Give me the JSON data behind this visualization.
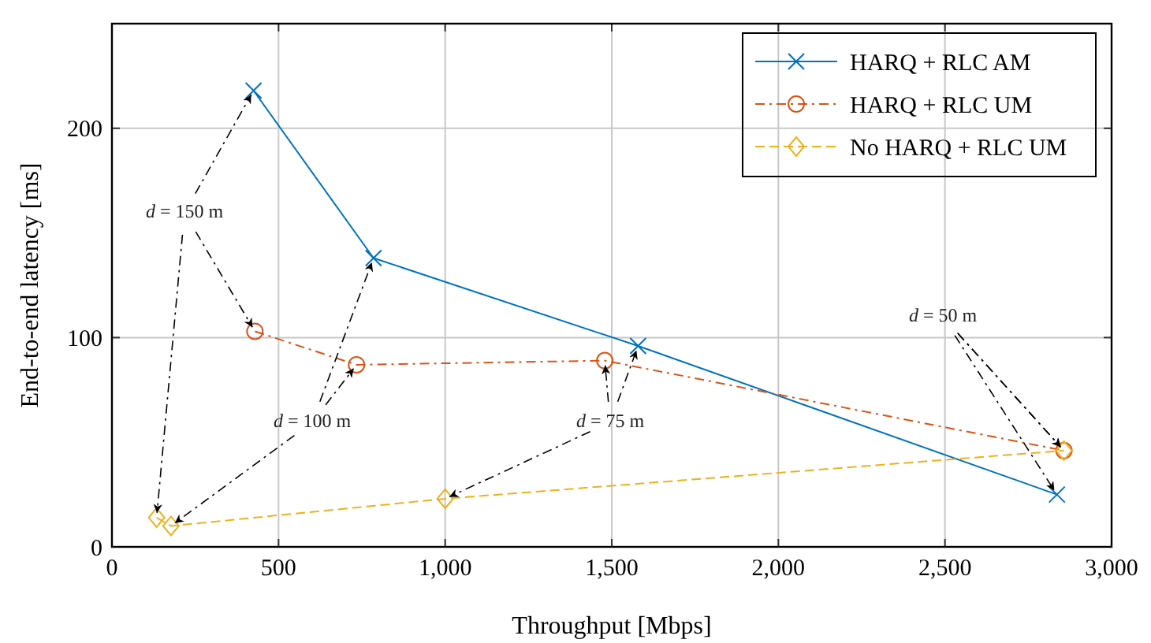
{
  "chart_data": {
    "type": "line",
    "xlabel": "Throughput [Mbps]",
    "ylabel": "End-to-end latency [ms]",
    "xlim": [
      0,
      3000
    ],
    "xticks": [
      0,
      500,
      {
        "value": 1000,
        "label": "1,000"
      },
      {
        "value": 1500,
        "label": "1,500"
      },
      {
        "value": 2000,
        "label": "2,000"
      },
      {
        "value": 2500,
        "label": "2,500"
      },
      {
        "value": 3000,
        "label": "3,000"
      }
    ],
    "ylim": [
      0,
      250
    ],
    "yticks": [
      0,
      100,
      200
    ],
    "grid": true,
    "legend": "top right",
    "series": [
      {
        "name": "HARQ + RLC AM",
        "color": "#0072bd",
        "marker": "cross",
        "line_style": "solid",
        "x": [
          425,
          785,
          1579,
          2836
        ],
        "values": [
          218,
          138,
          96,
          25
        ]
      },
      {
        "name": "HARQ + RLC UM",
        "color": "#d95319",
        "marker": "circle",
        "line_style": "dashdot",
        "x": [
          429,
          734,
          1479,
          2857
        ],
        "values": [
          103,
          87,
          89,
          46
        ]
      },
      {
        "name": "No HARQ + RLC UM",
        "color": "#edb120",
        "marker": "diamond",
        "line_style": "dashed",
        "x": [
          134,
          177,
          1000,
          2857
        ],
        "values": [
          14,
          10,
          23,
          46
        ]
      }
    ],
    "annotations": [
      {
        "text": "d = 150 m",
        "x": 425,
        "y": 218
      },
      {
        "text": "d = 100 m",
        "x": 785,
        "y": 138
      },
      {
        "text": "d = 75 m",
        "x": 1579,
        "y": 96
      },
      {
        "text": "d = 50 m",
        "x": 2836,
        "y": 25
      }
    ]
  }
}
